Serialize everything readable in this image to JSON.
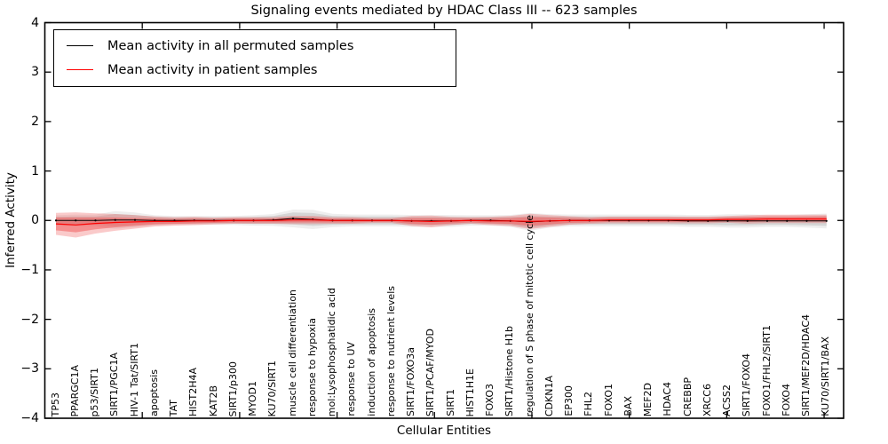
{
  "figure": {
    "title": "Signaling events mediated by HDAC Class III -- 623 samples",
    "xlabel": "Cellular Entities",
    "ylabel": "Inferred Activity"
  },
  "legend": {
    "entries": [
      {
        "label": "Mean activity in all permuted samples",
        "color": "#000000"
      },
      {
        "label": "Mean activity in patient samples",
        "color": "#ff0000"
      }
    ]
  },
  "chart_data": {
    "type": "line",
    "title": "Signaling events mediated by HDAC Class III -- 623 samples",
    "xlabel": "Cellular Entities",
    "ylabel": "Inferred Activity",
    "ylim": [
      -4,
      4
    ],
    "yticks": [
      4,
      3,
      2,
      1,
      0,
      -1,
      -2,
      -3,
      -4
    ],
    "ytick_labels": [
      "4",
      "3",
      "2",
      "1",
      "0",
      "−1",
      "−2",
      "−3",
      "−4"
    ],
    "grid": false,
    "legend_position": "upper left",
    "categories": [
      "TP53",
      "PPARGC1A",
      "p53/SIRT1",
      "SIRT1/PGC1A",
      "HIV-1 Tat/SIRT1",
      "apoptosis",
      "TAT",
      "HIST2H4A",
      "KAT2B",
      "SIRT1/p300",
      "MYOD1",
      "KU70/SIRT1",
      "muscle cell differentiation",
      "response to hypoxia",
      "mol:Lysophosphatidic acid",
      "response to UV",
      "induction of apoptosis",
      "response to nutrient levels",
      "SIRT1/FOXO3a",
      "SIRT1/PCAF/MYOD",
      "SIRT1",
      "HIST1H1E",
      "FOXO3",
      "SIRT1/Histone H1b",
      "regulation of S phase of mitotic cell cycle",
      "CDKN1A",
      "EP300",
      "FHL2",
      "FOXO1",
      "BAX",
      "MEF2D",
      "HDAC4",
      "CREBBP",
      "XRCC6",
      "ACSS2",
      "SIRT1/FOXO4",
      "FOXO1/FHL2/SIRT1",
      "FOXO4",
      "SIRT1/MEF2D/HDAC4",
      "KU70/SIRT1/BAX"
    ],
    "series": [
      {
        "name": "Mean activity in all permuted samples",
        "color": "#000000",
        "band_color": "#b0b0b0",
        "values": [
          0.0,
          0.0,
          0.0,
          0.01,
          0.01,
          0.0,
          0.0,
          0.0,
          0.0,
          0.0,
          0.0,
          0.01,
          0.04,
          0.02,
          0.0,
          0.0,
          0.0,
          0.0,
          -0.01,
          -0.01,
          -0.01,
          0.0,
          0.0,
          -0.01,
          -0.03,
          -0.01,
          0.0,
          0.0,
          0.0,
          0.0,
          0.0,
          0.0,
          -0.01,
          -0.01,
          -0.01,
          -0.01,
          -0.01,
          -0.01,
          -0.01,
          -0.01
        ],
        "std": [
          0.07,
          0.08,
          0.08,
          0.12,
          0.1,
          0.07,
          0.06,
          0.06,
          0.06,
          0.06,
          0.07,
          0.08,
          0.12,
          0.13,
          0.09,
          0.08,
          0.08,
          0.08,
          0.08,
          0.08,
          0.08,
          0.07,
          0.07,
          0.08,
          0.12,
          0.09,
          0.08,
          0.08,
          0.08,
          0.08,
          0.08,
          0.08,
          0.08,
          0.08,
          0.09,
          0.09,
          0.08,
          0.08,
          0.09,
          0.1
        ]
      },
      {
        "name": "Mean activity in patient samples",
        "color": "#ff0000",
        "band_color": "#f05050",
        "values": [
          -0.07,
          -0.09,
          -0.06,
          -0.04,
          -0.03,
          -0.02,
          -0.02,
          -0.01,
          -0.01,
          0.0,
          0.0,
          0.0,
          0.01,
          0.01,
          0.0,
          0.0,
          0.0,
          0.0,
          -0.01,
          -0.02,
          -0.01,
          0.0,
          -0.01,
          -0.01,
          -0.02,
          -0.01,
          0.0,
          0.0,
          0.01,
          0.01,
          0.01,
          0.01,
          0.01,
          0.01,
          0.02,
          0.02,
          0.03,
          0.03,
          0.03,
          0.03
        ],
        "std": [
          0.13,
          0.15,
          0.12,
          0.1,
          0.08,
          0.06,
          0.05,
          0.05,
          0.04,
          0.04,
          0.04,
          0.04,
          0.05,
          0.05,
          0.04,
          0.04,
          0.03,
          0.03,
          0.06,
          0.07,
          0.05,
          0.04,
          0.05,
          0.06,
          0.09,
          0.07,
          0.05,
          0.04,
          0.04,
          0.04,
          0.04,
          0.04,
          0.04,
          0.04,
          0.04,
          0.05,
          0.05,
          0.05,
          0.05,
          0.05
        ]
      }
    ]
  }
}
